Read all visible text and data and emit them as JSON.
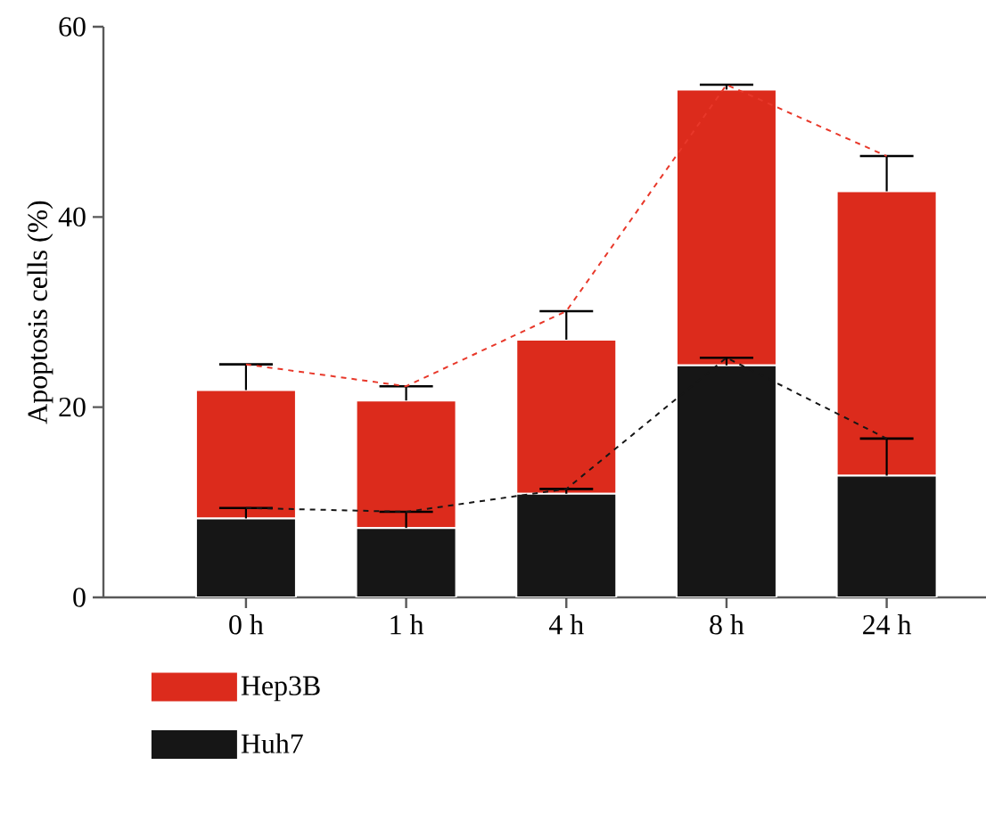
{
  "chart_data": {
    "type": "bar",
    "stacked": true,
    "ylabel": "Apoptosis cells (%)",
    "categories": [
      "0 h",
      "1 h",
      "4 h",
      "8 h",
      "24 h"
    ],
    "ylim": [
      0,
      60
    ],
    "yticks": [
      0,
      20,
      40,
      60
    ],
    "legend": "bottom left",
    "grid": false,
    "series": [
      {
        "name": "Huh7",
        "color": "#161616",
        "values": [
          8.3,
          7.3,
          10.9,
          24.4,
          12.8
        ],
        "errors": [
          [
            8.3,
            9.4
          ],
          [
            7.3,
            9.0
          ],
          [
            10.9,
            11.4
          ],
          [
            24.4,
            25.2
          ],
          [
            12.8,
            16.7
          ]
        ]
      },
      {
        "name": "Hep3B",
        "color": "#dc2b1c",
        "values": [
          13.5,
          13.4,
          16.2,
          29.0,
          29.9
        ],
        "errors": [
          [
            21.8,
            24.5
          ],
          [
            20.7,
            22.2
          ],
          [
            27.1,
            30.1
          ],
          [
            53.4,
            53.9
          ],
          [
            42.7,
            46.4
          ]
        ]
      },
      {
        "type": "line",
        "color": "#161616",
        "line_style": "dashed",
        "marker": "none",
        "values": [
          9.4,
          9.0,
          11.4,
          25.2,
          16.7
        ]
      },
      {
        "type": "line",
        "color": "#e8382a",
        "line_style": "dashed",
        "marker": "none",
        "values": [
          24.5,
          22.2,
          30.1,
          53.9,
          46.4
        ]
      }
    ]
  }
}
